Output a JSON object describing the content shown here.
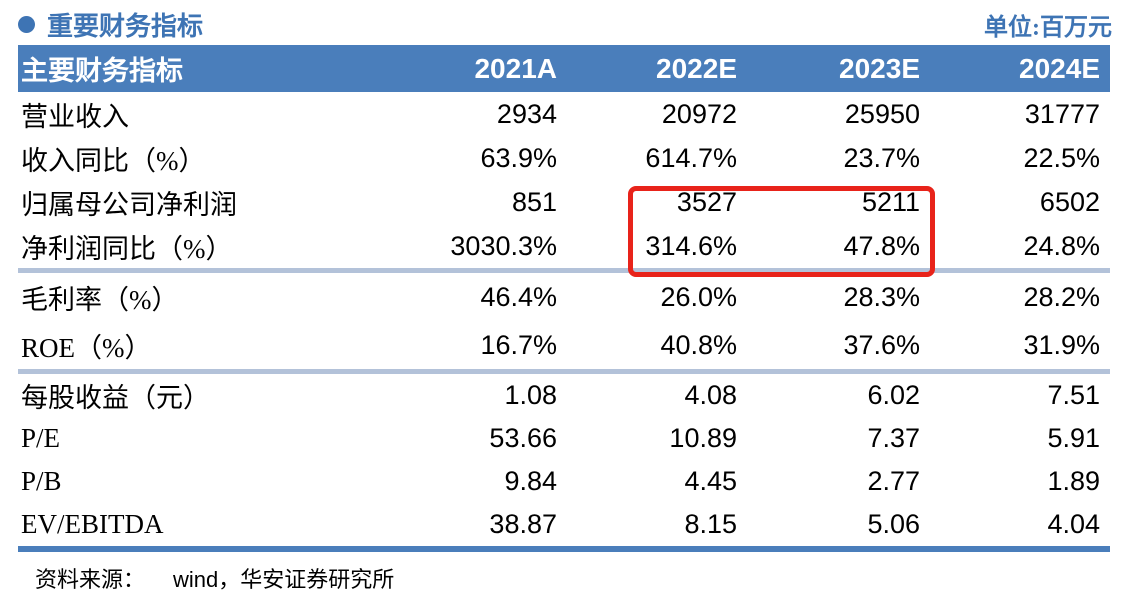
{
  "page": {
    "bullet_icon": "circle-bullet",
    "title": "重要财务指标",
    "unit_label": "单位:百万元"
  },
  "colors": {
    "accent_blue": "#4a7ebb",
    "title_blue": "#3e74b4",
    "divider_blue": "#b3c2d9",
    "highlight_red": "#e8231a",
    "header_text": "#ffffff",
    "body_text": "#000000"
  },
  "table": {
    "header": [
      "主要财务指标",
      "2021A",
      "2022E",
      "2023E",
      "2024E"
    ],
    "rows": [
      {
        "label": "营业收入",
        "values": [
          "2934",
          "20972",
          "25950",
          "31777"
        ]
      },
      {
        "label": "收入同比（%）",
        "values": [
          "63.9%",
          "614.7%",
          "23.7%",
          "22.5%"
        ]
      },
      {
        "label": "归属母公司净利润",
        "values": [
          "851",
          "3527",
          "5211",
          "6502"
        ]
      },
      {
        "label": "净利润同比（%）",
        "values": [
          "3030.3%",
          "314.6%",
          "47.8%",
          "24.8%"
        ]
      },
      {
        "label": "毛利率（%）",
        "values": [
          "46.4%",
          "26.0%",
          "28.3%",
          "28.2%"
        ]
      },
      {
        "label": "ROE（%）",
        "values": [
          "16.7%",
          "40.8%",
          "37.6%",
          "31.9%"
        ]
      },
      {
        "label": "每股收益（元）",
        "values": [
          "1.08",
          "4.08",
          "6.02",
          "7.51"
        ]
      },
      {
        "label": "P/E",
        "values": [
          "53.66",
          "10.89",
          "7.37",
          "5.91"
        ]
      },
      {
        "label": "P/B",
        "values": [
          "9.84",
          "4.45",
          "2.77",
          "1.89"
        ]
      },
      {
        "label": "EV/EBITDA",
        "values": [
          "38.87",
          "8.15",
          "5.06",
          "4.04"
        ]
      }
    ],
    "highlight": {
      "description": "red box around 2022E and 2023E values of rows 归属母公司净利润 and 净利润同比（%）",
      "highlighted_values": [
        "3527",
        "5211",
        "314.6%",
        "47.8%"
      ]
    }
  },
  "footer": {
    "source_label": "资料来源：",
    "source_text": "wind，华安证券研究所"
  }
}
